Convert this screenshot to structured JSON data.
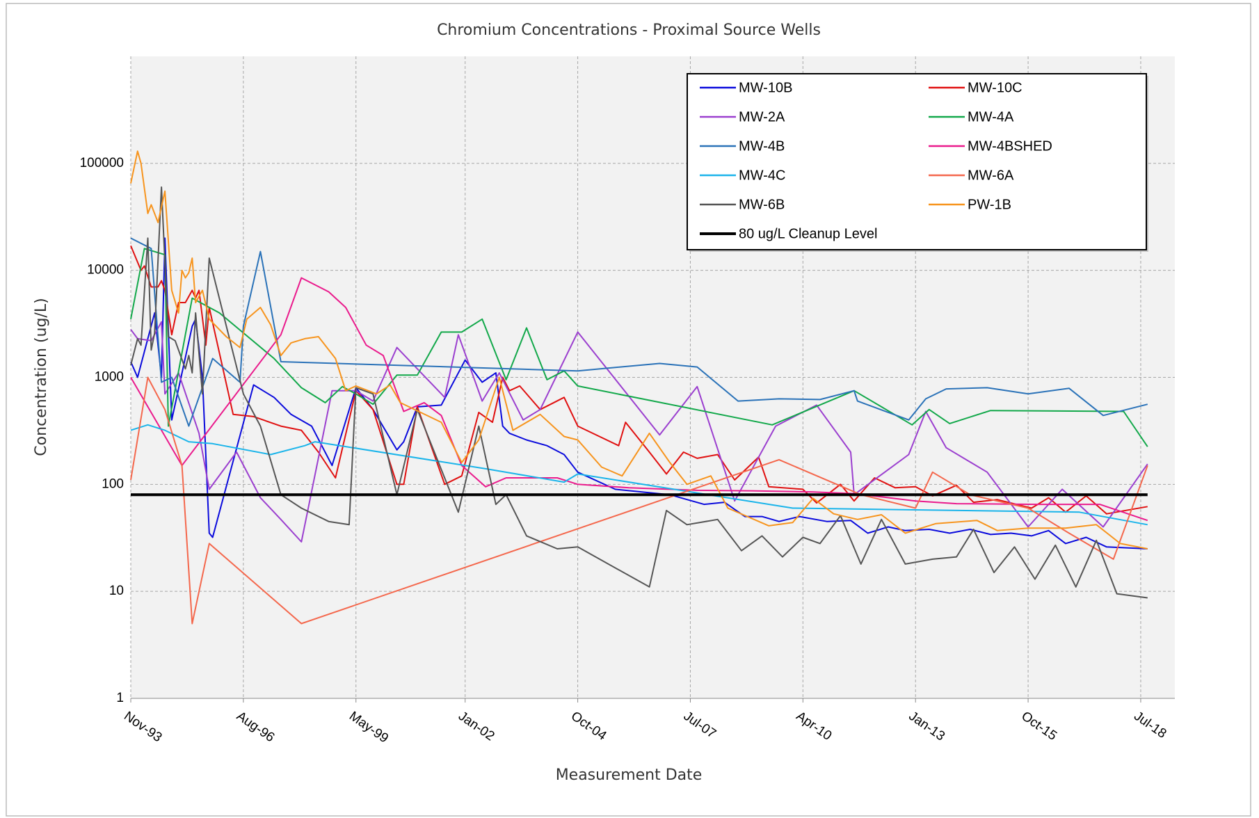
{
  "chart_data": {
    "type": "line",
    "title": "Chromium Concentrations - Proximal Source Wells",
    "xlabel": "Measurement Date",
    "ylabel": "Concentration (ug/L)",
    "xlim": [
      "1993-11",
      "2019-05"
    ],
    "xticks": [
      {
        "value": "1993-11",
        "label": "Nov-93"
      },
      {
        "value": "1996-08",
        "label": "Aug-96"
      },
      {
        "value": "1999-05",
        "label": "May-99"
      },
      {
        "value": "2002-01",
        "label": "Jan-02"
      },
      {
        "value": "2004-10",
        "label": "Oct-04"
      },
      {
        "value": "2007-07",
        "label": "Jul-07"
      },
      {
        "value": "2010-04",
        "label": "Apr-10"
      },
      {
        "value": "2013-01",
        "label": "Jan-13"
      },
      {
        "value": "2015-10",
        "label": "Oct-15"
      },
      {
        "value": "2018-07",
        "label": "Jul-18"
      }
    ],
    "ylim": [
      1,
      1000000
    ],
    "yticks": [
      1,
      10,
      100,
      1000,
      10000,
      100000
    ],
    "yscale": "log",
    "grid": true,
    "legend": "upper right",
    "series": [
      {
        "name": "MW-10B",
        "color": "#0a0adc",
        "x": [
          "1993-11",
          "1994-01",
          "1994-06",
          "1994-08",
          "1994-09",
          "1994-11",
          "1995-05",
          "1995-06",
          "1995-08",
          "1995-10",
          "1995-11",
          "1996-11",
          "1997-05",
          "1997-10",
          "1998-04",
          "1998-10",
          "1999-05",
          "1999-10",
          "2000-05",
          "2000-07",
          "2000-11",
          "2001-06",
          "2002-01",
          "2002-06",
          "2002-10",
          "2002-12",
          "2003-02",
          "2003-07",
          "2004-01",
          "2004-06",
          "2004-10",
          "2005-09",
          "2007-01",
          "2007-11",
          "2008-05",
          "2008-11",
          "2009-04",
          "2009-09",
          "2010-03",
          "2010-11",
          "2011-06",
          "2011-11",
          "2012-05",
          "2012-10",
          "2013-05",
          "2013-11",
          "2014-05",
          "2014-11",
          "2015-05",
          "2015-11",
          "2016-04",
          "2016-09",
          "2017-03",
          "2017-09",
          "2018-09"
        ],
        "values": [
          1400,
          1000,
          4000,
          1000,
          20000,
          400,
          3000,
          3500,
          1000,
          35,
          32,
          850,
          650,
          450,
          350,
          150,
          800,
          500,
          210,
          250,
          530,
          550,
          1450,
          900,
          1100,
          350,
          300,
          260,
          230,
          190,
          130,
          90,
          80,
          65,
          68,
          50,
          50,
          45,
          50,
          45,
          46,
          35,
          40,
          37,
          38,
          35,
          38,
          34,
          35,
          33,
          37,
          28,
          32,
          26,
          25
        ]
      },
      {
        "name": "MW-10C",
        "color": "#e01010",
        "x": [
          "1993-11",
          "1994-02",
          "1994-03",
          "1994-05",
          "1994-07",
          "1994-08",
          "1994-09",
          "1994-11",
          "1995-01",
          "1995-03",
          "1995-05",
          "1995-06",
          "1995-07",
          "1995-09",
          "1995-10",
          "1996-05",
          "1996-11",
          "1997-07",
          "1998-01",
          "1998-06",
          "1998-11",
          "1999-05",
          "1999-10",
          "2000-05",
          "2000-07",
          "2000-11",
          "2001-07",
          "2001-12",
          "2002-05",
          "2002-09",
          "2002-12",
          "2003-02",
          "2003-05",
          "2003-11",
          "2004-06",
          "2004-10",
          "2005-10",
          "2005-12",
          "2006-07",
          "2006-12",
          "2007-05",
          "2007-09",
          "2008-03",
          "2008-08",
          "2009-03",
          "2009-06",
          "2010-04",
          "2010-08",
          "2011-03",
          "2011-07",
          "2012-01",
          "2012-07",
          "2013-01",
          "2013-06",
          "2014-01",
          "2014-06",
          "2015-01",
          "2015-11",
          "2016-04",
          "2016-09",
          "2017-03",
          "2017-09",
          "2018-09"
        ],
        "values": [
          17000,
          10000,
          11000,
          7000,
          7000,
          8000,
          6500,
          2500,
          5000,
          5000,
          6500,
          5500,
          6500,
          2000,
          4500,
          450,
          430,
          350,
          320,
          200,
          115,
          750,
          500,
          100,
          100,
          530,
          100,
          120,
          470,
          380,
          1000,
          750,
          830,
          500,
          650,
          350,
          230,
          380,
          200,
          125,
          200,
          175,
          190,
          110,
          180,
          95,
          90,
          67,
          100,
          70,
          115,
          93,
          95,
          78,
          98,
          68,
          72,
          60,
          75,
          55,
          78,
          53,
          62
        ]
      },
      {
        "name": "MW-2A",
        "color": "#9b3fcf",
        "x": [
          "1993-11",
          "1994-01",
          "1994-05",
          "1994-08",
          "1994-09",
          "1995-01",
          "1995-07",
          "1995-10",
          "1996-06",
          "1997-01",
          "1997-07",
          "1998-01",
          "1998-10",
          "1999-05",
          "1999-10",
          "2000-05",
          "2000-11",
          "2001-07",
          "2001-11",
          "2002-06",
          "2002-11",
          "2003-06",
          "2003-11",
          "2004-10",
          "2006-10",
          "2007-09",
          "2008-08",
          "2009-08",
          "2010-08",
          "2011-06",
          "2011-07",
          "2012-11",
          "2013-04",
          "2013-10",
          "2014-10",
          "2015-10",
          "2016-08",
          "2017-08",
          "2018-09"
        ],
        "values": [
          2800,
          2300,
          2200,
          3300,
          700,
          1100,
          300,
          90,
          200,
          75,
          47,
          29,
          750,
          750,
          600,
          1900,
          1200,
          650,
          2500,
          600,
          1100,
          400,
          500,
          2650,
          290,
          820,
          70,
          350,
          550,
          200,
          80,
          190,
          480,
          220,
          130,
          40,
          90,
          40,
          155
        ]
      },
      {
        "name": "MW-4A",
        "color": "#12a84a",
        "x": [
          "1993-11",
          "1994-03",
          "1994-09",
          "1994-10",
          "1995-05",
          "1996-01",
          "1997-05",
          "1998-01",
          "1998-08",
          "1999-01",
          "1999-05",
          "1999-10",
          "2000-05",
          "2000-11",
          "2001-06",
          "2001-12",
          "2002-06",
          "2003-01",
          "2003-07",
          "2004-01",
          "2004-06",
          "2004-10",
          "2009-07",
          "2011-07",
          "2012-12",
          "2013-05",
          "2013-11",
          "2014-11",
          "2018-02",
          "2018-09"
        ],
        "values": [
          3500,
          16000,
          14000,
          350,
          5500,
          4000,
          1500,
          800,
          580,
          820,
          700,
          560,
          1050,
          1050,
          2650,
          2650,
          3500,
          950,
          2900,
          950,
          1150,
          830,
          360,
          750,
          360,
          500,
          370,
          490,
          480,
          225
        ]
      },
      {
        "name": "MW-4B",
        "color": "#2a72b8",
        "x": [
          "1993-11",
          "1994-05",
          "1994-08",
          "1994-11",
          "1995-04",
          "1995-11",
          "1996-07",
          "1996-08",
          "1997-01",
          "1997-07",
          "2004-10",
          "2006-10",
          "2007-09",
          "2008-09",
          "2009-09",
          "2010-09",
          "2011-07",
          "2011-08",
          "2012-11",
          "2013-04",
          "2013-10",
          "2014-10",
          "2015-10",
          "2016-10",
          "2017-08",
          "2018-09"
        ],
        "values": [
          20000,
          16000,
          900,
          1000,
          350,
          1500,
          900,
          3000,
          15000,
          1400,
          1150,
          1350,
          1250,
          600,
          630,
          620,
          750,
          600,
          400,
          630,
          780,
          800,
          700,
          790,
          440,
          560
        ]
      },
      {
        "name": "MW-4BSHED",
        "color": "#ea1a8c",
        "x": [
          "1993-11",
          "1995-02",
          "1997-07",
          "1998-01",
          "1998-09",
          "1999-02",
          "1999-08",
          "2000-01",
          "2000-07",
          "2001-01",
          "2001-06",
          "2001-12",
          "2002-07",
          "2003-01",
          "2004-04",
          "2004-10",
          "2006-01",
          "2007-09",
          "2009-01",
          "2010-07",
          "2011-07",
          "2013-01",
          "2014-01",
          "2016-01",
          "2017-07",
          "2018-09"
        ],
        "values": [
          1000,
          150,
          2500,
          8500,
          6300,
          4500,
          2000,
          1600,
          480,
          580,
          440,
          150,
          95,
          115,
          115,
          100,
          93,
          88,
          87,
          85,
          82,
          70,
          66,
          65,
          65,
          46
        ]
      },
      {
        "name": "MW-4C",
        "color": "#1ab4ea",
        "x": [
          "1993-11",
          "1994-04",
          "1994-09",
          "1995-04",
          "1995-11",
          "1997-04",
          "1998-02",
          "1998-05",
          "2002-07",
          "2004-06",
          "2004-10",
          "2010-01",
          "2017-01",
          "2018-09"
        ],
        "values": [
          320,
          360,
          320,
          250,
          240,
          190,
          230,
          250,
          140,
          105,
          125,
          60,
          55,
          42
        ]
      },
      {
        "name": "MW-6A",
        "color": "#f4674c",
        "x": [
          "1993-11",
          "1994-04",
          "1994-09",
          "1995-02",
          "1995-05",
          "1995-10",
          "1998-01",
          "2009-09",
          "2011-09",
          "2013-01",
          "2013-06",
          "2014-05",
          "2015-10",
          "2016-10",
          "2017-11",
          "2018-09"
        ],
        "values": [
          110,
          1000,
          500,
          150,
          5,
          28,
          5,
          170,
          80,
          60,
          130,
          80,
          60,
          35,
          20,
          150
        ]
      },
      {
        "name": "MW-6B",
        "color": "#555555",
        "x": [
          "1993-11",
          "1994-01",
          "1994-02",
          "1994-04",
          "1994-05",
          "1994-06",
          "1994-08",
          "1994-10",
          "1994-12",
          "1995-03",
          "1995-04",
          "1995-05",
          "1995-06",
          "1995-08",
          "1995-10",
          "1996-08",
          "1997-01",
          "1997-07",
          "1998-01",
          "1998-09",
          "1999-03",
          "1999-05",
          "1999-10",
          "2000-05",
          "2000-11",
          "2001-11",
          "2002-05",
          "2002-10",
          "2003-01",
          "2003-07",
          "2004-04",
          "2004-10",
          "2006-07",
          "2006-12",
          "2007-06",
          "2008-03",
          "2008-10",
          "2009-04",
          "2009-10",
          "2010-04",
          "2010-09",
          "2011-03",
          "2011-09",
          "2012-03",
          "2012-10",
          "2013-06",
          "2014-01",
          "2014-06",
          "2014-12",
          "2015-06",
          "2015-12",
          "2016-06",
          "2016-12",
          "2017-06",
          "2017-12",
          "2018-09"
        ],
        "values": [
          1300,
          2300,
          2000,
          20000,
          1800,
          2600,
          60000,
          2400,
          2200,
          1200,
          1600,
          1100,
          4000,
          700,
          13000,
          700,
          350,
          80,
          60,
          45,
          42,
          800,
          700,
          80,
          500,
          55,
          350,
          65,
          80,
          33,
          25,
          26,
          11,
          57,
          42,
          47,
          24,
          33,
          21,
          32,
          28,
          51,
          18,
          47,
          18,
          20,
          21,
          38,
          15,
          26,
          13,
          27,
          11,
          30,
          9.5,
          8.7
        ]
      },
      {
        "name": "PW-1B",
        "color": "#f7941d",
        "x": [
          "1993-11",
          "1994-01",
          "1994-02",
          "1994-04",
          "1994-05",
          "1994-07",
          "1994-09",
          "1994-11",
          "1995-01",
          "1995-02",
          "1995-03",
          "1995-04",
          "1995-05",
          "1995-06",
          "1995-08",
          "1995-10",
          "1996-03",
          "1996-07",
          "1996-09",
          "1997-01",
          "1997-04",
          "1997-07",
          "1997-10",
          "1998-02",
          "1998-06",
          "1998-11",
          "1999-02",
          "1999-05",
          "1999-11",
          "2000-03",
          "2000-06",
          "2001-06",
          "2001-12",
          "2002-05",
          "2002-11",
          "2003-03",
          "2003-11",
          "2004-06",
          "2004-10",
          "2005-05",
          "2005-11",
          "2006-07",
          "2007-01",
          "2007-06",
          "2008-01",
          "2008-06",
          "2009-06",
          "2010-01",
          "2010-07",
          "2011-01",
          "2011-08",
          "2012-03",
          "2012-10",
          "2013-07",
          "2014-07",
          "2015-01",
          "2015-10",
          "2016-03",
          "2016-09",
          "2017-06",
          "2018-01",
          "2018-09"
        ],
        "values": [
          65000,
          130000,
          100000,
          34000,
          41000,
          28000,
          55000,
          6500,
          4000,
          10000,
          8500,
          9500,
          13000,
          5000,
          6500,
          3500,
          2400,
          1900,
          3500,
          4500,
          3100,
          1600,
          2100,
          2300,
          2400,
          1500,
          750,
          830,
          700,
          850,
          580,
          380,
          160,
          260,
          1000,
          320,
          450,
          280,
          260,
          145,
          120,
          300,
          160,
          100,
          120,
          60,
          41,
          44,
          74,
          53,
          47,
          52,
          35,
          43,
          46,
          37,
          39,
          39,
          39,
          42,
          28,
          25
        ]
      },
      {
        "name": "80 ug/L Cleanup Level",
        "color": "#000000",
        "line_width": 4,
        "x": [
          "1993-11",
          "2018-09"
        ],
        "values": [
          80,
          80
        ]
      }
    ]
  }
}
